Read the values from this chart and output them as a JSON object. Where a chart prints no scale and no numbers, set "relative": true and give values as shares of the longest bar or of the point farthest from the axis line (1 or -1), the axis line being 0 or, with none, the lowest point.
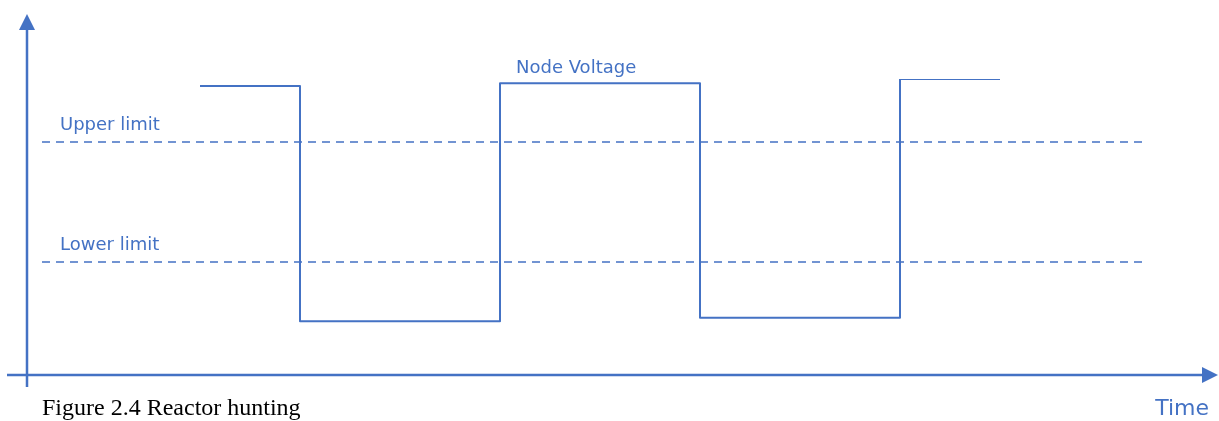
{
  "chart_data": {
    "type": "step",
    "title": "Figure 2.4 Reactor hunting",
    "xlabel": "Time",
    "relative": true,
    "categories": [
      null,
      null,
      null,
      null,
      null,
      null,
      null,
      null,
      null
    ],
    "series": [
      {
        "name": "Node Voltage",
        "color": "#4472c4",
        "values": [
          0.976,
          0.182,
          0.182,
          0.986,
          0.986,
          0.193,
          0.193,
          1.0,
          1.0
        ]
      }
    ],
    "ref_lines": [
      {
        "axis": "y",
        "value": 0.787,
        "label": "Upper limit",
        "color": "#4472c4",
        "line_style": "dashed"
      },
      {
        "axis": "y",
        "value": 0.382,
        "label": "Lower limit",
        "color": "#4472c4",
        "line_style": "dashed"
      }
    ],
    "legend": false,
    "marker": "none",
    "line_style": "solid"
  }
}
